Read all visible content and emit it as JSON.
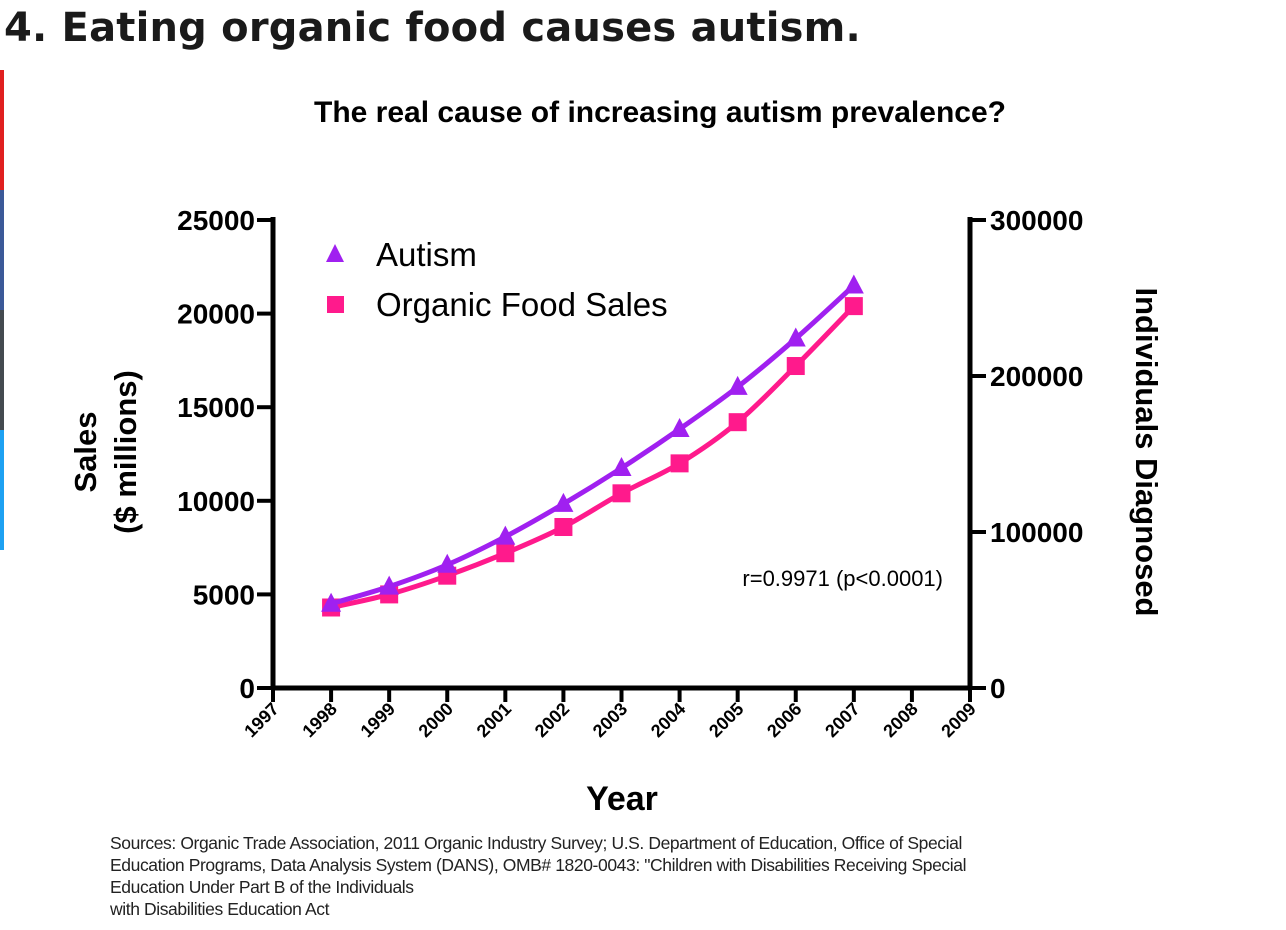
{
  "page": {
    "heading": "4. Eating organic food causes autism."
  },
  "sources_lines": [
    "Sources: Organic Trade Association,  2011 Organic Industry Survey; U.S. Department of Education, Office of Special",
    "Education Programs, Data Analysis System (DANS), OMB# 1820-0043: \"Children with Disabilities Receiving Special",
    "Education Under Part B of the Individuals",
    "with Disabilities Education Act"
  ],
  "colors": {
    "autism": "#a020f0",
    "organic": "#ff1a8c",
    "axis": "#000000"
  },
  "chart_data": {
    "type": "line",
    "title": "The real cause of increasing autism prevalence?",
    "xlabel": "Year",
    "ylabel_lines": [
      "Sales",
      "($ millions)"
    ],
    "y2label": "Individuals Diagnosed",
    "x_ticks": [
      "1997",
      "1998",
      "1999",
      "2000",
      "2001",
      "2002",
      "2003",
      "2004",
      "2005",
      "2006",
      "2007",
      "2008",
      "2009"
    ],
    "xlim": [
      1997,
      2009
    ],
    "ylim": [
      0,
      25000
    ],
    "y_ticks": [
      "0",
      "5000",
      "10000",
      "15000",
      "20000",
      "25000"
    ],
    "y2lim": [
      0,
      300000
    ],
    "y2_ticks": [
      "0",
      "100000",
      "200000",
      "300000"
    ],
    "legend_position": "top-left",
    "annotation": "r=0.9971 (p<0.0001)",
    "series": [
      {
        "name": "Autism",
        "axis": "right",
        "marker": "triangle",
        "x": [
          1998,
          1999,
          2000,
          2001,
          2002,
          2003,
          2004,
          2005,
          2006,
          2007
        ],
        "values": [
          54000,
          65000,
          79000,
          97000,
          118000,
          141000,
          166000,
          193000,
          224000,
          258000
        ]
      },
      {
        "name": "Organic Food Sales",
        "axis": "left",
        "marker": "square",
        "x": [
          1998,
          1999,
          2000,
          2001,
          2002,
          2003,
          2004,
          2005,
          2006,
          2007
        ],
        "values": [
          4300,
          5000,
          6000,
          7200,
          8600,
          10400,
          12000,
          14200,
          17200,
          20400
        ]
      }
    ]
  }
}
